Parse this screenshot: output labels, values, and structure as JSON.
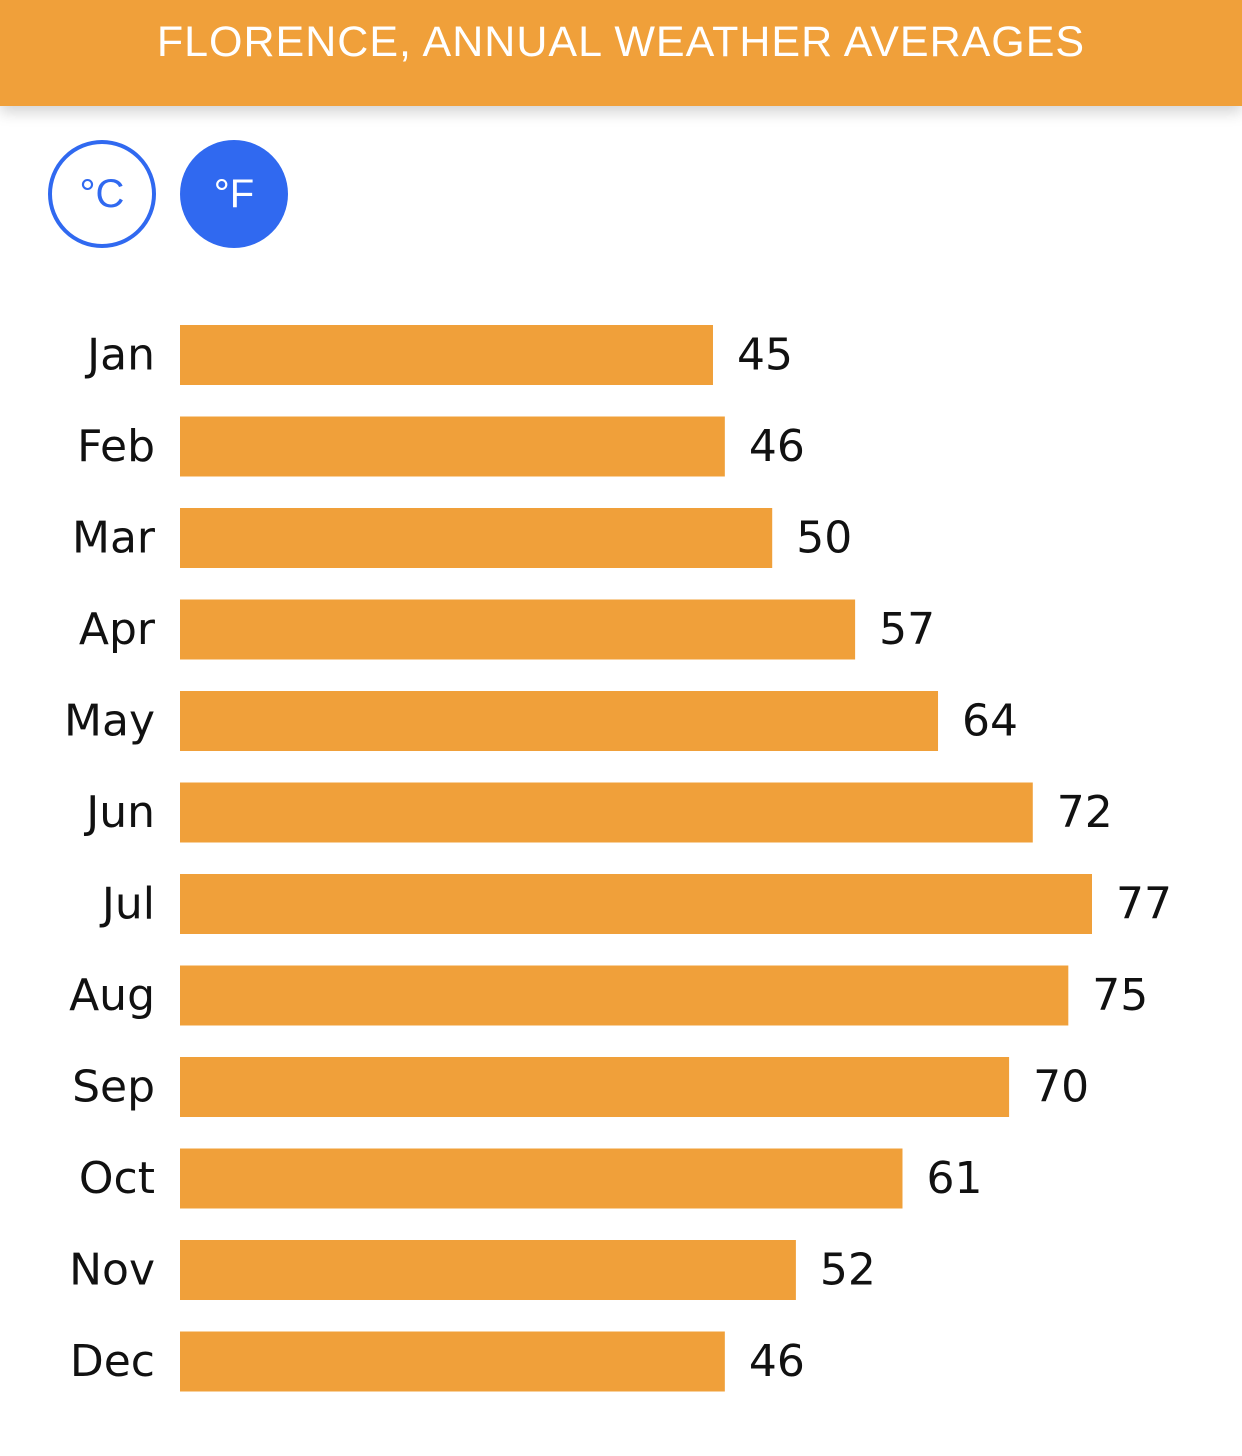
{
  "header": {
    "title": "FLORENCE, ANNUAL WEATHER AVERAGES"
  },
  "units": {
    "celsius_label": "°C",
    "fahrenheit_label": "°F",
    "selected": "°F"
  },
  "colors": {
    "accent": "#f0a03a",
    "toggle_blue": "#3069f0",
    "text": "#111111"
  },
  "chart_data": {
    "type": "bar",
    "orientation": "horizontal",
    "categories": [
      "Jan",
      "Feb",
      "Mar",
      "Apr",
      "May",
      "Jun",
      "Jul",
      "Aug",
      "Sep",
      "Oct",
      "Nov",
      "Dec"
    ],
    "values": [
      45,
      46,
      50,
      57,
      64,
      72,
      77,
      75,
      70,
      61,
      52,
      46
    ],
    "value_labels": [
      "45",
      "46",
      "50",
      "57",
      "64",
      "72",
      "77",
      "75",
      "70",
      "61",
      "52",
      "46"
    ],
    "title": "FLORENCE, ANNUAL WEATHER AVERAGES",
    "xlabel": "",
    "ylabel": "",
    "xlim": [
      0,
      77
    ],
    "grid": false,
    "legend": "none",
    "bar_color": "#f0a03a"
  }
}
